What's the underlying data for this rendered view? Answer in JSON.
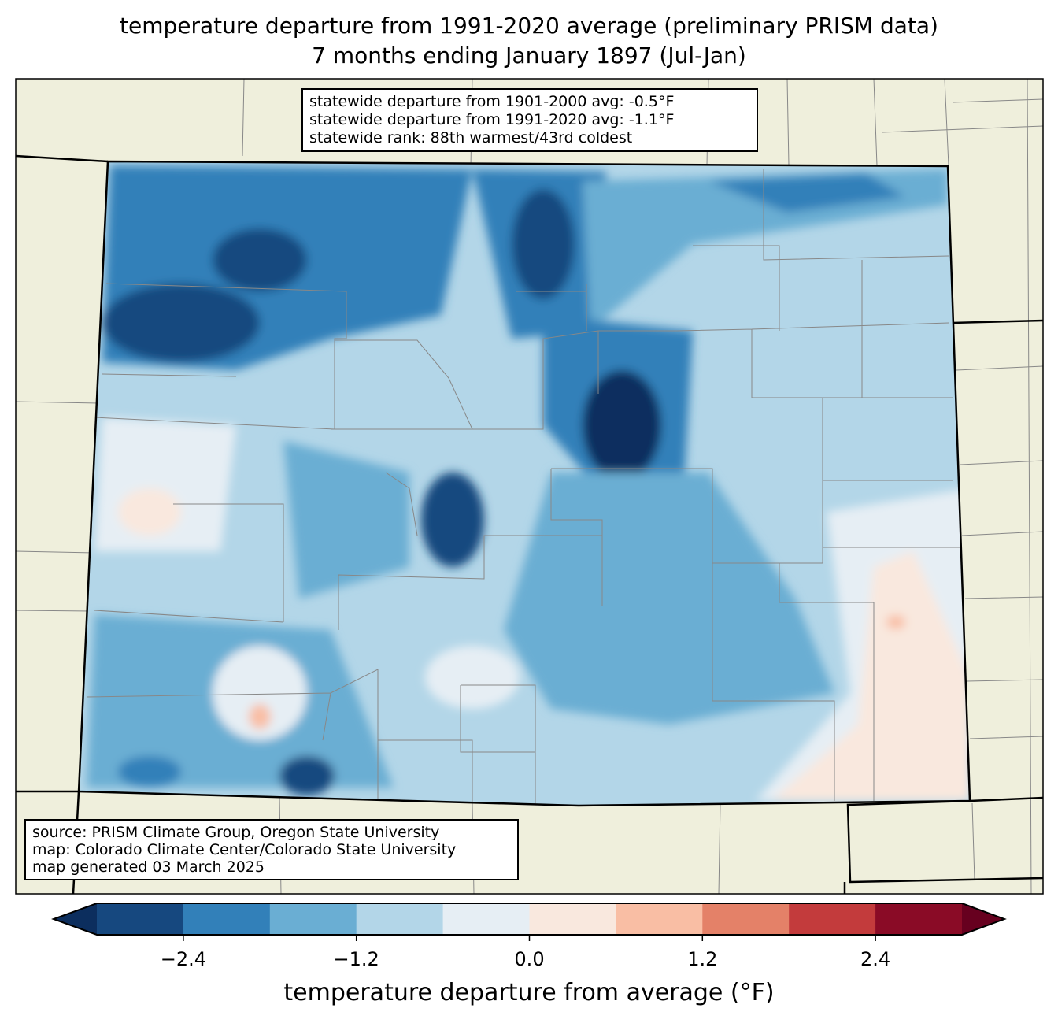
{
  "title": {
    "line1": "temperature departure from 1991-2020 average (preliminary PRISM data)",
    "line2": "7 months ending January 1897 (Jul-Jan)"
  },
  "stats": {
    "line1": "statewide departure from 1901-2000 avg: -0.5°F",
    "line2": "statewide departure from 1991-2020 avg: -1.1°F",
    "line3": "statewide rank: 88th warmest/43rd coldest"
  },
  "source": {
    "line1": "source: PRISM Climate Group, Oregon State University",
    "line2": "map: Colorado Climate Center/Colorado State University",
    "line3": "map generated 03 March 2025"
  },
  "colorbar": {
    "label": "temperature departure from average (°F)",
    "ticks": [
      "−2.4",
      "−1.2",
      "0.0",
      "1.2",
      "2.4"
    ],
    "tick_values": [
      -2.4,
      -1.2,
      0.0,
      1.2,
      2.4
    ],
    "range": [
      -3.0,
      3.0
    ],
    "bin_colors": [
      "#16487f",
      "#3280b9",
      "#6aaed3",
      "#b3d6e8",
      "#e6eef4",
      "#f9e8de",
      "#f9bea4",
      "#e48168",
      "#c33b3c",
      "#8a0b26"
    ],
    "under_color": "#0c2e5e",
    "over_color": "#67001f"
  },
  "colors": {
    "land": "#efefdc",
    "state_fill": "#b3d6e8"
  }
}
